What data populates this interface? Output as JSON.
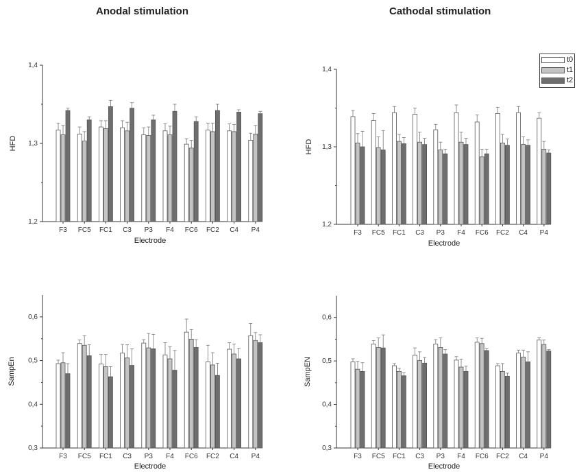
{
  "titles": {
    "left": "Anodal stimulation",
    "right": "Cathodal stimulation"
  },
  "legend": [
    {
      "name": "t0",
      "color": "#ffffff"
    },
    {
      "name": "t1",
      "color": "#c4c4c4"
    },
    {
      "name": "t2",
      "color": "#6e6e6e"
    }
  ],
  "chart_data": [
    {
      "type": "bar",
      "xlabel": "Electrode",
      "ylabel": "HFD",
      "ylim": [
        1.2,
        1.4
      ],
      "yticks": [
        "1,2",
        "1,3",
        "1,4"
      ],
      "ytick_values": [
        1.2,
        1.3,
        1.4
      ],
      "categories": [
        "F3",
        "FC5",
        "FC1",
        "C3",
        "P3",
        "F4",
        "FC6",
        "FC2",
        "C4",
        "P4"
      ],
      "series": [
        {
          "name": "t0",
          "values": [
            1.317,
            1.312,
            1.321,
            1.32,
            1.311,
            1.316,
            1.299,
            1.317,
            1.316,
            1.304
          ],
          "errors": [
            0.009,
            0.009,
            0.008,
            0.009,
            0.009,
            0.009,
            0.007,
            0.009,
            0.009,
            0.009
          ]
        },
        {
          "name": "t1",
          "values": [
            1.311,
            1.303,
            1.319,
            1.316,
            1.31,
            1.311,
            1.294,
            1.315,
            1.315,
            1.312
          ],
          "errors": [
            0.012,
            0.012,
            0.01,
            0.011,
            0.011,
            0.011,
            0.01,
            0.011,
            0.009,
            0.011
          ]
        },
        {
          "name": "t2",
          "values": [
            1.342,
            1.33,
            1.347,
            1.345,
            1.33,
            1.341,
            1.328,
            1.342,
            1.34,
            1.338
          ],
          "errors": [
            0.003,
            0.004,
            0.008,
            0.007,
            0.006,
            0.009,
            0.006,
            0.008,
            0.003,
            0.003
          ]
        }
      ]
    },
    {
      "type": "bar",
      "xlabel": "Electrode",
      "ylabel": "HFD",
      "ylim": [
        1.2,
        1.4
      ],
      "yticks": [
        "1,2",
        "1,3",
        "1,4"
      ],
      "ytick_values": [
        1.2,
        1.3,
        1.4
      ],
      "categories": [
        "F3",
        "FC5",
        "FC1",
        "C3",
        "P3",
        "F4",
        "FC6",
        "FC2",
        "C4",
        "P4"
      ],
      "series": [
        {
          "name": "t0",
          "values": [
            1.339,
            1.334,
            1.344,
            1.342,
            1.322,
            1.344,
            1.332,
            1.343,
            1.344,
            1.337
          ],
          "errors": [
            0.008,
            0.009,
            0.008,
            0.008,
            0.007,
            0.01,
            0.009,
            0.008,
            0.008,
            0.007
          ]
        },
        {
          "name": "t1",
          "values": [
            1.305,
            1.299,
            1.307,
            1.306,
            1.296,
            1.306,
            1.287,
            1.305,
            1.303,
            1.297
          ],
          "errors": [
            0.012,
            0.014,
            0.009,
            0.013,
            0.01,
            0.013,
            0.01,
            0.011,
            0.01,
            0.01
          ]
        },
        {
          "name": "t2",
          "values": [
            1.3,
            1.296,
            1.304,
            1.303,
            1.291,
            1.303,
            1.291,
            1.302,
            1.302,
            1.292
          ],
          "errors": [
            0.02,
            0.025,
            0.008,
            0.008,
            0.006,
            0.008,
            0.006,
            0.008,
            0.007,
            0.004
          ]
        }
      ]
    },
    {
      "type": "bar",
      "xlabel": "Electrode",
      "ylabel": "SampEn",
      "ylim": [
        0.3,
        0.65
      ],
      "yticks": [
        "0,3",
        "0,4",
        "0,5",
        "0,6"
      ],
      "ytick_values": [
        0.3,
        0.4,
        0.5,
        0.6
      ],
      "categories": [
        "F3",
        "FC5",
        "FC1",
        "C3",
        "P3",
        "F4",
        "FC6",
        "FC2",
        "C4",
        "P4"
      ],
      "series": [
        {
          "name": "t0",
          "values": [
            0.493,
            0.539,
            0.492,
            0.517,
            0.54,
            0.513,
            0.565,
            0.497,
            0.526,
            0.557
          ],
          "errors": [
            0.008,
            0.008,
            0.022,
            0.02,
            0.008,
            0.028,
            0.03,
            0.038,
            0.015,
            0.028
          ]
        },
        {
          "name": "t1",
          "values": [
            0.495,
            0.535,
            0.486,
            0.506,
            0.529,
            0.504,
            0.549,
            0.49,
            0.515,
            0.546
          ],
          "errors": [
            0.023,
            0.022,
            0.028,
            0.03,
            0.033,
            0.028,
            0.022,
            0.028,
            0.023,
            0.018
          ]
        },
        {
          "name": "t2",
          "values": [
            0.47,
            0.511,
            0.463,
            0.489,
            0.527,
            0.478,
            0.53,
            0.466,
            0.504,
            0.541
          ],
          "errors": [
            0.023,
            0.025,
            0.023,
            0.038,
            0.033,
            0.045,
            0.018,
            0.028,
            0.024,
            0.018
          ]
        }
      ]
    },
    {
      "type": "bar",
      "xlabel": "Electrode",
      "ylabel": "SampEN",
      "ylim": [
        0.3,
        0.65
      ],
      "yticks": [
        "0,3",
        "0,4",
        "0,5",
        "0,6"
      ],
      "ytick_values": [
        0.3,
        0.4,
        0.5,
        0.6
      ],
      "categories": [
        "F3",
        "FC5",
        "FC1",
        "C3",
        "P3",
        "F4",
        "FC6",
        "FC2",
        "C4",
        "P4"
      ],
      "series": [
        {
          "name": "t0",
          "values": [
            0.498,
            0.539,
            0.489,
            0.513,
            0.539,
            0.502,
            0.543,
            0.489,
            0.518,
            0.548
          ],
          "errors": [
            0.007,
            0.008,
            0.005,
            0.017,
            0.01,
            0.008,
            0.01,
            0.005,
            0.007,
            0.006
          ]
        },
        {
          "name": "t1",
          "values": [
            0.481,
            0.531,
            0.476,
            0.501,
            0.531,
            0.486,
            0.54,
            0.476,
            0.509,
            0.538
          ],
          "errors": [
            0.018,
            0.022,
            0.007,
            0.02,
            0.022,
            0.018,
            0.012,
            0.018,
            0.016,
            0.01
          ]
        },
        {
          "name": "t2",
          "values": [
            0.476,
            0.53,
            0.466,
            0.495,
            0.516,
            0.476,
            0.524,
            0.465,
            0.498,
            0.523
          ],
          "errors": [
            0.02,
            0.03,
            0.007,
            0.013,
            0.01,
            0.012,
            0.005,
            0.007,
            0.023,
            0.003
          ]
        }
      ]
    }
  ]
}
